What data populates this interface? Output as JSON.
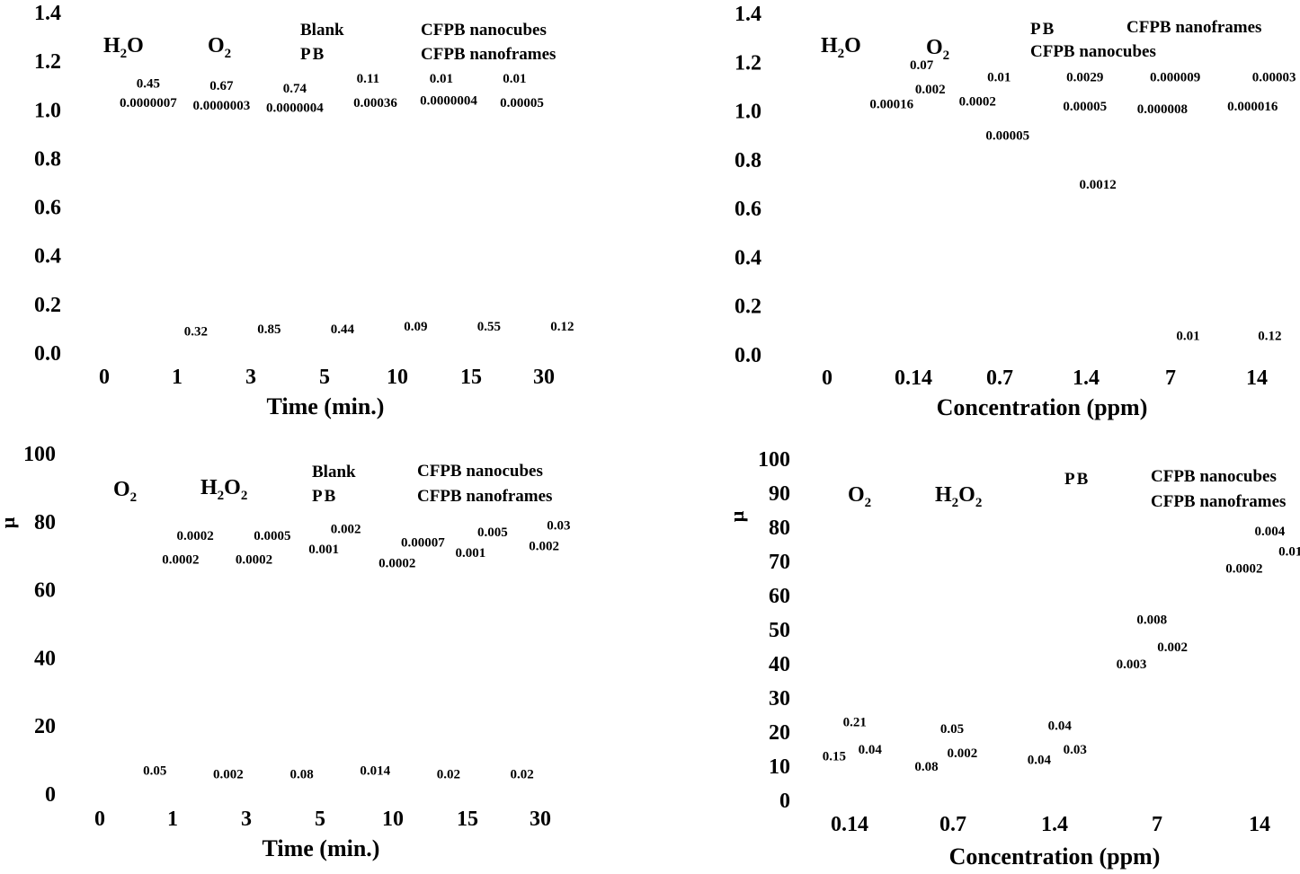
{
  "chart_data": [
    {
      "type": "bar",
      "title": "",
      "xlabel": "Time (min.)",
      "ylabel": "",
      "categories": [
        "0",
        "1",
        "3",
        "5",
        "10",
        "15",
        "30"
      ],
      "ylim": [
        0.0,
        1.4
      ],
      "yticks": [
        "1.4",
        "1.2",
        "1.0",
        "0.8",
        "0.6",
        "0.4",
        "0.2",
        "0.0"
      ],
      "legend": [
        "Blank",
        "PB",
        "CFPB nanocubes",
        "CFPB nanoframes"
      ],
      "groups": [
        "H2O",
        "O2"
      ],
      "annotations": [
        {
          "text": "0.45",
          "x": 0.6,
          "y": 1.11
        },
        {
          "text": "0.0000007",
          "x": 0.6,
          "y": 1.03
        },
        {
          "text": "0.67",
          "x": 1.6,
          "y": 1.1
        },
        {
          "text": "0.0000003",
          "x": 1.6,
          "y": 1.02
        },
        {
          "text": "0.74",
          "x": 2.6,
          "y": 1.09
        },
        {
          "text": "0.0000004",
          "x": 2.6,
          "y": 1.01
        },
        {
          "text": "0.11",
          "x": 3.6,
          "y": 1.13
        },
        {
          "text": "0.00036",
          "x": 3.7,
          "y": 1.03
        },
        {
          "text": "0.01",
          "x": 4.6,
          "y": 1.13
        },
        {
          "text": "0.0000004",
          "x": 4.7,
          "y": 1.04
        },
        {
          "text": "0.01",
          "x": 5.6,
          "y": 1.13
        },
        {
          "text": "0.00005",
          "x": 5.7,
          "y": 1.03
        },
        {
          "text": "0.32",
          "x": 1.25,
          "y": 0.09
        },
        {
          "text": "0.85",
          "x": 2.25,
          "y": 0.1
        },
        {
          "text": "0.44",
          "x": 3.25,
          "y": 0.1
        },
        {
          "text": "0.09",
          "x": 4.25,
          "y": 0.11
        },
        {
          "text": "0.55",
          "x": 5.25,
          "y": 0.11
        },
        {
          "text": "0.12",
          "x": 6.25,
          "y": 0.11
        }
      ]
    },
    {
      "type": "bar",
      "title": "",
      "xlabel": "Concentration (ppm)",
      "ylabel": "",
      "categories": [
        "0",
        "0.14",
        "0.7",
        "1.4",
        "7",
        "14"
      ],
      "ylim": [
        0.0,
        1.4
      ],
      "yticks": [
        "1.4",
        "1.2",
        "1.0",
        "0.8",
        "0.6",
        "0.4",
        "0.2",
        "0.0"
      ],
      "legend": [
        "PB",
        "CFPB nanocubes",
        "CFPB nanoframes"
      ],
      "groups": [
        "H2O",
        "O2"
      ],
      "annotations": [
        {
          "text": "0.07",
          "x": 1.1,
          "y": 1.19
        },
        {
          "text": "0.002",
          "x": 1.2,
          "y": 1.09
        },
        {
          "text": "0.00016",
          "x": 0.75,
          "y": 1.03
        },
        {
          "text": "0.01",
          "x": 2.0,
          "y": 1.14
        },
        {
          "text": "0.0002",
          "x": 1.75,
          "y": 1.04
        },
        {
          "text": "0.00005",
          "x": 2.1,
          "y": 0.9
        },
        {
          "text": "0.0029",
          "x": 3.0,
          "y": 1.14
        },
        {
          "text": "0.00005",
          "x": 3.0,
          "y": 1.02
        },
        {
          "text": "0.0012",
          "x": 3.15,
          "y": 0.7
        },
        {
          "text": "0.000009",
          "x": 4.05,
          "y": 1.14
        },
        {
          "text": "0.000008",
          "x": 3.9,
          "y": 1.01
        },
        {
          "text": "0.00003",
          "x": 5.2,
          "y": 1.14
        },
        {
          "text": "0.000016",
          "x": 4.95,
          "y": 1.02
        },
        {
          "text": "0.01",
          "x": 4.2,
          "y": 0.08
        },
        {
          "text": "0.12",
          "x": 5.15,
          "y": 0.08
        }
      ]
    },
    {
      "type": "bar",
      "title": "",
      "xlabel": "Time (min.)",
      "ylabel": "μ",
      "categories": [
        "0",
        "1",
        "3",
        "5",
        "10",
        "15",
        "30"
      ],
      "ylim": [
        0,
        100
      ],
      "yticks": [
        "100",
        "80",
        "60",
        "40",
        "20",
        "0"
      ],
      "legend": [
        "Blank",
        "PB",
        "CFPB nanocubes",
        "CFPB nanoframes"
      ],
      "groups": [
        "O2",
        "H2O2"
      ],
      "annotations": [
        {
          "text": "0.0002",
          "x": 1.3,
          "y": 76
        },
        {
          "text": "0.0002",
          "x": 1.1,
          "y": 69
        },
        {
          "text": "0.0005",
          "x": 2.35,
          "y": 76
        },
        {
          "text": "0.0002",
          "x": 2.1,
          "y": 69
        },
        {
          "text": "0.002",
          "x": 3.35,
          "y": 78
        },
        {
          "text": "0.001",
          "x": 3.05,
          "y": 72
        },
        {
          "text": "0.00007",
          "x": 4.4,
          "y": 74
        },
        {
          "text": "0.0002",
          "x": 4.05,
          "y": 68
        },
        {
          "text": "0.005",
          "x": 5.35,
          "y": 77
        },
        {
          "text": "0.001",
          "x": 5.05,
          "y": 71
        },
        {
          "text": "0.03",
          "x": 6.25,
          "y": 79
        },
        {
          "text": "0.002",
          "x": 6.05,
          "y": 73
        },
        {
          "text": "0.05",
          "x": 0.75,
          "y": 7
        },
        {
          "text": "0.002",
          "x": 1.75,
          "y": 6
        },
        {
          "text": "0.08",
          "x": 2.75,
          "y": 6
        },
        {
          "text": "0.014",
          "x": 3.75,
          "y": 7
        },
        {
          "text": "0.02",
          "x": 4.75,
          "y": 6
        },
        {
          "text": "0.02",
          "x": 5.75,
          "y": 6
        }
      ]
    },
    {
      "type": "bar",
      "title": "",
      "xlabel": "Concentration (ppm)",
      "ylabel": "μ",
      "categories": [
        "0.14",
        "0.7",
        "1.4",
        "7",
        "14"
      ],
      "ylim": [
        0,
        100
      ],
      "yticks": [
        "100",
        "90",
        "80",
        "70",
        "60",
        "50",
        "40",
        "30",
        "20",
        "10",
        "0"
      ],
      "legend": [
        "PB",
        "CFPB nanocubes",
        "CFPB nanoframes"
      ],
      "groups": [
        "O2",
        "H2O2"
      ],
      "annotations": [
        {
          "text": "0.21",
          "x": 0.05,
          "y": 23
        },
        {
          "text": "0.15",
          "x": -0.15,
          "y": 13
        },
        {
          "text": "0.04",
          "x": 0.2,
          "y": 15
        },
        {
          "text": "0.05",
          "x": 1.0,
          "y": 21
        },
        {
          "text": "0.08",
          "x": 0.75,
          "y": 10
        },
        {
          "text": "0.002",
          "x": 1.1,
          "y": 14
        },
        {
          "text": "0.04",
          "x": 2.05,
          "y": 22
        },
        {
          "text": "0.04",
          "x": 1.85,
          "y": 12
        },
        {
          "text": "0.03",
          "x": 2.2,
          "y": 15
        },
        {
          "text": "0.008",
          "x": 2.95,
          "y": 53
        },
        {
          "text": "0.002",
          "x": 3.15,
          "y": 45
        },
        {
          "text": "0.003",
          "x": 2.75,
          "y": 40
        },
        {
          "text": "0.004",
          "x": 4.1,
          "y": 79
        },
        {
          "text": "0.01",
          "x": 4.3,
          "y": 73
        },
        {
          "text": "0.0002",
          "x": 3.85,
          "y": 68
        }
      ]
    }
  ]
}
